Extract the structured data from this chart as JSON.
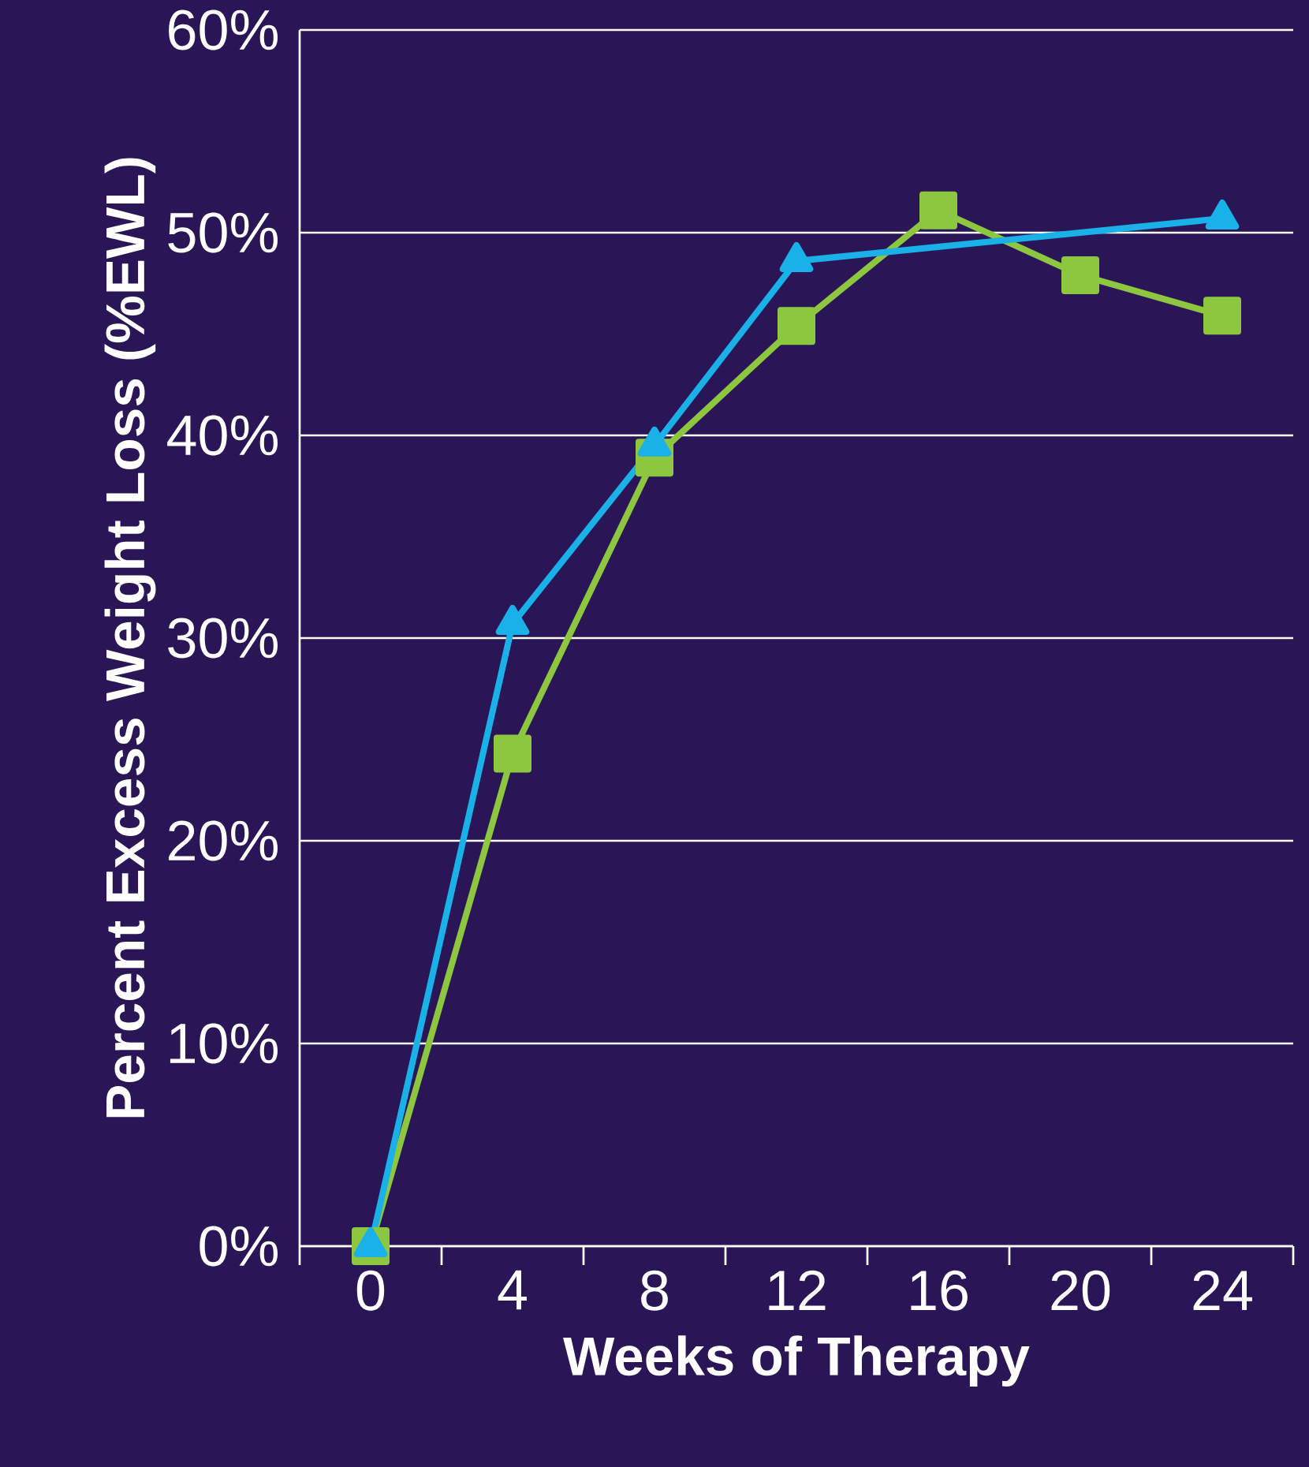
{
  "chart_data": {
    "type": "line",
    "xlabel": "Weeks of Therapy",
    "ylabel": "Percent Excess Weight Loss (%EWL)",
    "xlim": [
      -2,
      26
    ],
    "xticks": [
      {
        "value": -2,
        "label": null
      },
      0,
      {
        "value": 2,
        "label": null
      },
      4,
      {
        "value": 6,
        "label": null
      },
      8,
      {
        "value": 10,
        "label": null
      },
      12,
      {
        "value": 14,
        "label": null
      },
      16,
      {
        "value": 18,
        "label": null
      },
      20,
      {
        "value": 22,
        "label": null
      },
      24,
      {
        "value": 26,
        "label": null
      }
    ],
    "ylim": [
      0,
      60
    ],
    "yticks": [
      {
        "value": 0,
        "label": "0%"
      },
      {
        "value": 10,
        "label": "10%"
      },
      {
        "value": 20,
        "label": "20%"
      },
      {
        "value": 30,
        "label": "30%"
      },
      {
        "value": 40,
        "label": "40%"
      },
      {
        "value": 50,
        "label": "50%"
      },
      {
        "value": 60,
        "label": "60%"
      }
    ],
    "grid": "y",
    "series": [
      {
        "color": "#8dc63f",
        "marker": "square",
        "x": [
          0,
          4,
          8,
          12,
          16,
          20,
          24
        ],
        "values": [
          0,
          24.3,
          38.9,
          45.4,
          51.1,
          47.9,
          45.9
        ]
      },
      {
        "color": "#1ab0e8",
        "marker": "triangle",
        "x": [
          0,
          4,
          8,
          12,
          24
        ],
        "values": [
          0,
          30.7,
          39.5,
          48.6,
          50.7
        ]
      }
    ]
  }
}
